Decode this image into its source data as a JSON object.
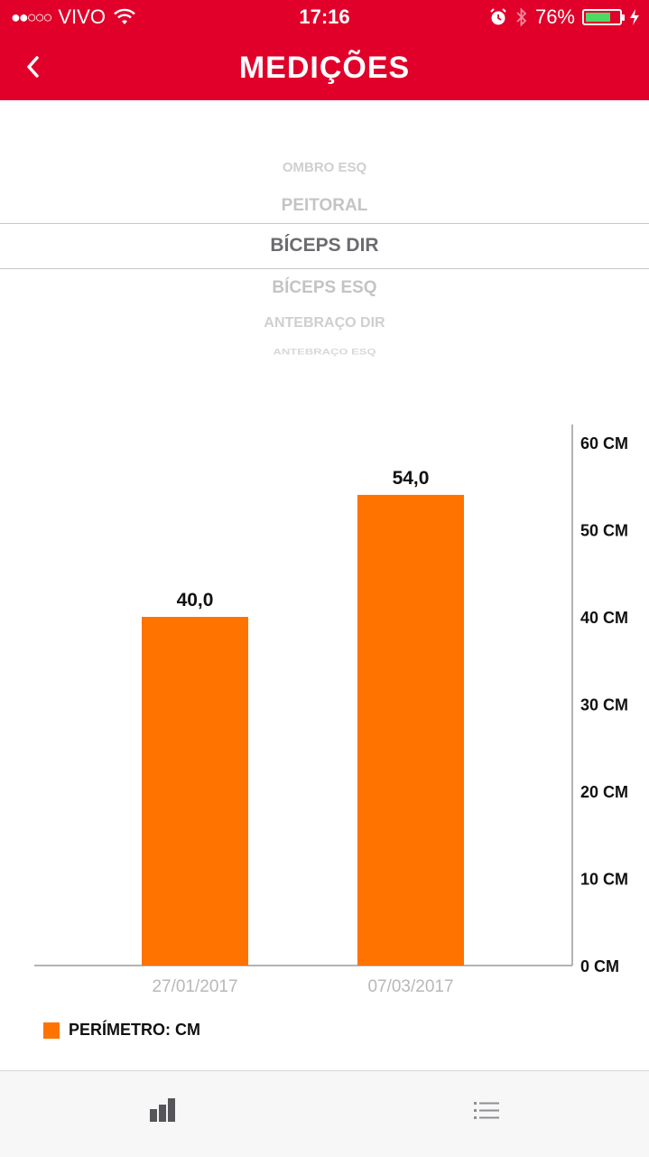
{
  "status": {
    "carrier": "VIVO",
    "time": "17:16",
    "battery": "76%",
    "battery_level": 0.76
  },
  "header": {
    "title": "MEDIÇÕES"
  },
  "picker": {
    "items": [
      "OMBRO ESQ",
      "PEITORAL",
      "BÍCEPS DIR",
      "BÍCEPS ESQ",
      "ANTEBRAÇO DIR",
      "ANTEBRAÇO ESQ"
    ],
    "selected": "BÍCEPS DIR"
  },
  "chart_data": {
    "type": "bar",
    "categories": [
      "27/01/2017",
      "07/03/2017"
    ],
    "series": [
      {
        "name": "PERÍMETRO: CM",
        "values": [
          40.0,
          54.0
        ]
      }
    ],
    "value_labels": [
      "40,0",
      "54,0"
    ],
    "y_ticks": [
      "0 CM",
      "10 CM",
      "20 CM",
      "30 CM",
      "40 CM",
      "50 CM",
      "60 CM"
    ],
    "ylim": [
      0,
      60
    ],
    "color": "#ff7300",
    "grid": false,
    "y_axis_position": "right",
    "legend_position": "bottom-left"
  },
  "legend": {
    "label": "PERÍMETRO: CM"
  },
  "tabs": {
    "chart": "bar-chart-icon",
    "list": "list-icon"
  }
}
